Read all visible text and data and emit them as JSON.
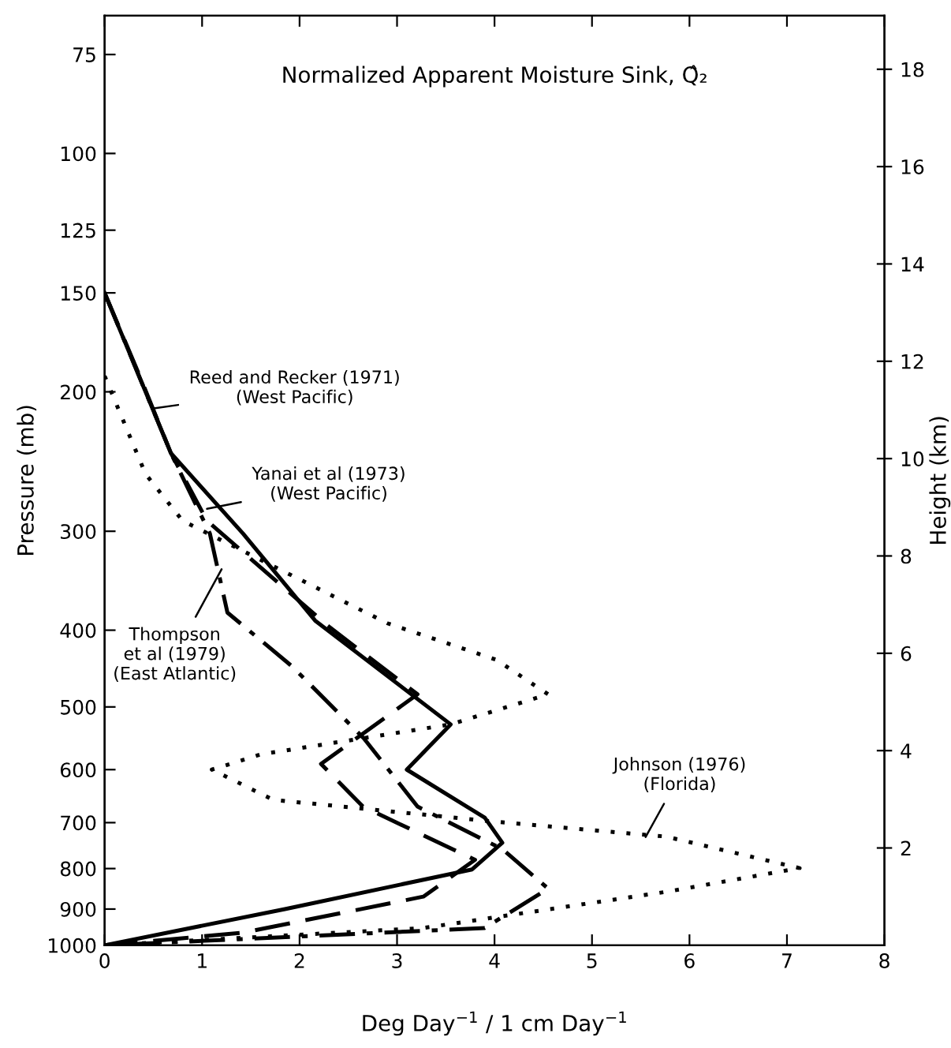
{
  "chart_data": {
    "type": "line",
    "title": "Normalized Apparent Moisture Sink, Q̂₂",
    "xlabel": "Deg Day$^{−1}$ / 1 cm Day$^{−1}$",
    "ylabel": "Pressure (mb)",
    "y2label": "Height (km)",
    "xlim": [
      0,
      8
    ],
    "xticks": [
      0,
      1,
      2,
      3,
      4,
      5,
      6,
      7,
      8
    ],
    "ylim": [
      1000,
      67
    ],
    "yticks": [
      75,
      100,
      125,
      150,
      200,
      300,
      400,
      500,
      600,
      700,
      800,
      900,
      1000
    ],
    "log": "y",
    "y2lim": [
      0,
      19.1
    ],
    "y2ticks": [
      2,
      4,
      6,
      8,
      10,
      12,
      14,
      16,
      18
    ],
    "grid": false,
    "legend": false,
    "series": [
      {
        "name": "Reed and Recker (1971)\n(West Pacific)",
        "color": "#000000",
        "line_style": "dashed",
        "x": [
          0,
          0.36,
          0.68,
          1.05,
          2.29,
          3.21,
          2.22,
          2.65,
          3.8,
          3.27,
          1.42,
          0
        ],
        "values": [
          150,
          191,
          239,
          291,
          395,
          482,
          590,
          668,
          780,
          868,
          964,
          1000
        ]
      },
      {
        "name": "Yanai et al (1973)\n(West Pacific)",
        "color": "#000000",
        "line_style": "solid",
        "x": [
          0,
          0.68,
          1.42,
          2.16,
          3.55,
          3.1,
          3.9,
          4.08,
          3.77,
          1.85,
          0
        ],
        "values": [
          150,
          239,
          302,
          389,
          526,
          600,
          690,
          742,
          802,
          900,
          1000
        ]
      },
      {
        "name": "Thompson\net al (1979)\n(East Atlantic)",
        "color": "#000000",
        "line_style": "dashdot",
        "x": [
          0,
          0.68,
          1.08,
          1.26,
          1.92,
          2.66,
          3.21,
          4.08,
          4.55,
          3.9,
          0
        ],
        "values": [
          150,
          239,
          302,
          380,
          444,
          548,
          668,
          756,
          848,
          951,
          1000
        ]
      },
      {
        "name": "Johnson (1976)\n(Florida)",
        "color": "#000000",
        "line_style": "dotted",
        "x": [
          0,
          0.42,
          0.8,
          2.9,
          4.02,
          4.55,
          3.55,
          1.6,
          1.1,
          1.73,
          3.9,
          5.76,
          7.13,
          5.76,
          3.27,
          0
        ],
        "values": [
          191,
          254,
          291,
          392,
          436,
          482,
          526,
          574,
          600,
          655,
          696,
          729,
          799,
          856,
          951,
          1000
        ]
      }
    ]
  }
}
